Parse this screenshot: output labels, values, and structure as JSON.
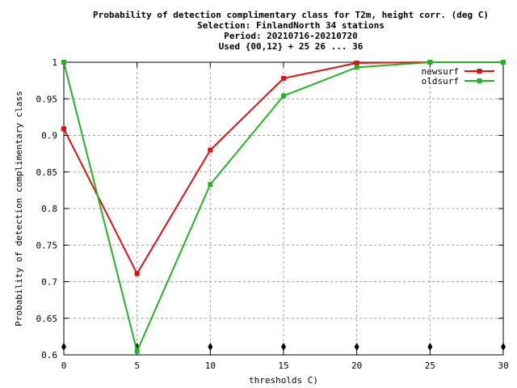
{
  "chart_data": {
    "type": "line",
    "title_lines": [
      "Probability of detection complimentary class  for T2m, height corr. (deg C)",
      "Selection: FinlandNorth     34 stations",
      "Period: 20210716-20210720",
      "Used {00,12} + 25 26 ... 36"
    ],
    "xlabel": "thresholds C)",
    "ylabel": "Probability of detection complimentary class",
    "xlim": [
      0,
      30
    ],
    "ylim": [
      0.6,
      1
    ],
    "xticks": [
      0,
      5,
      10,
      15,
      20,
      25,
      30
    ],
    "xtick_labels": [
      "0",
      "5",
      "10",
      "15",
      "20",
      "25",
      "30"
    ],
    "yticks": [
      0.6,
      0.65,
      0.7,
      0.75,
      0.8,
      0.85,
      0.9,
      0.95,
      1
    ],
    "ytick_labels": [
      "0.6",
      "0.65",
      "0.7",
      "0.75",
      "0.8",
      "0.85",
      "0.9",
      "0.95",
      "1"
    ],
    "grid": true,
    "legend_position": "top-right",
    "series": [
      {
        "name": "newsurf",
        "color": "#dd1111",
        "x": [
          0,
          5,
          10,
          15,
          20,
          25,
          30
        ],
        "y": [
          0.909,
          0.711,
          0.88,
          0.978,
          0.999,
          1.0,
          1.0
        ]
      },
      {
        "name": "oldsurf",
        "color": "#22b422",
        "x": [
          0,
          5,
          10,
          15,
          20,
          25,
          30
        ],
        "y": [
          1.0,
          0.605,
          0.833,
          0.954,
          0.993,
          1.0,
          1.0
        ]
      }
    ]
  }
}
